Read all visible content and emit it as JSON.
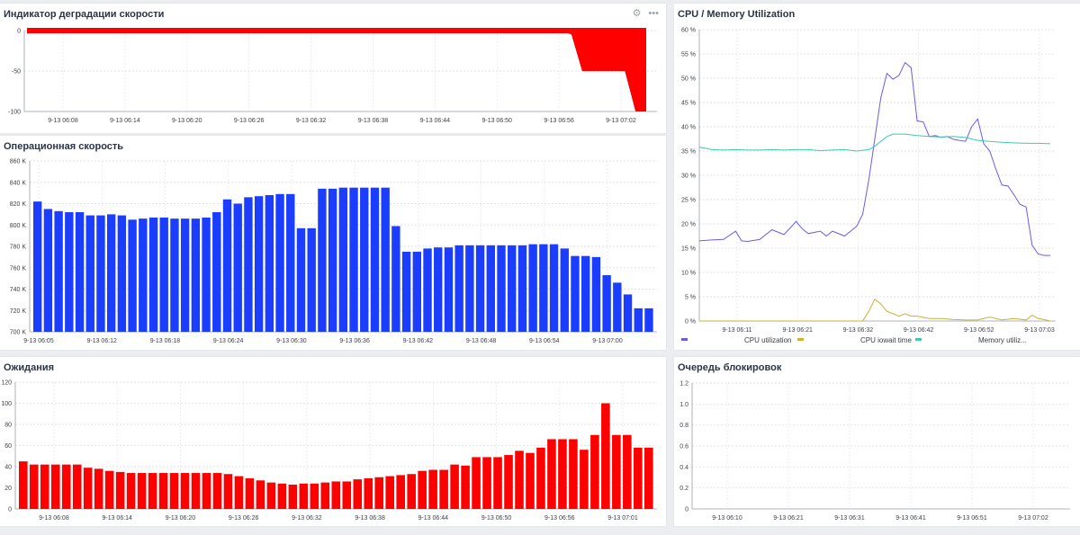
{
  "colors": {
    "red": "#ff0000",
    "blue": "#1a3dff",
    "cpu": "#6a5ce8",
    "iowait": "#c9b13a",
    "memory": "#40c9b0"
  },
  "panels": {
    "degradation": {
      "title": "Индикатор деградации скорости",
      "chart_data": {
        "type": "area",
        "title": "Индикатор деградации скорости",
        "ylim": [
          -100,
          0
        ],
        "y_ticks": [
          "0",
          "-50",
          "-100"
        ],
        "x_ticks": [
          "9-13 06:08",
          "9-13 06:14",
          "9-13 06:20",
          "9-13 06:26",
          "9-13 06:32",
          "9-13 06:38",
          "9-13 06:44",
          "9-13 06:50",
          "9-13 06:56",
          "9-13 07:02"
        ],
        "series": [
          {
            "x": [
              "06:05",
              "06:55",
              "06:56",
              "06:57",
              "07:01",
              "07:02",
              "07:03"
            ],
            "values": [
              0,
              0,
              -5,
              -50,
              -50,
              -100,
              -100
            ]
          }
        ]
      }
    },
    "speed": {
      "title": "Операционная скорость",
      "chart_data": {
        "type": "bar",
        "title": "Операционная скорость",
        "ylim": [
          700,
          860
        ],
        "y_ticks": [
          "860 K",
          "840 K",
          "820 K",
          "800 K",
          "780 K",
          "760 K",
          "740 K",
          "720 K",
          "700 K"
        ],
        "x_ticks": [
          "9-13 06:05",
          "9-13 06:12",
          "9-13 06:18",
          "9-13 06:24",
          "9-13 06:30",
          "9-13 06:36",
          "9-13 06:42",
          "9-13 06:48",
          "9-13 06:54",
          "9-13 07:00"
        ],
        "values": [
          822,
          815,
          813,
          812,
          812,
          809,
          809,
          810,
          809,
          805,
          806,
          807,
          807,
          806,
          806,
          806,
          807,
          812,
          824,
          820,
          826,
          827,
          828,
          829,
          829,
          797,
          797,
          834,
          834,
          835,
          835,
          835,
          835,
          835,
          799,
          775,
          775,
          778,
          779,
          779,
          781,
          781,
          781,
          781,
          781,
          781,
          781,
          782,
          782,
          782,
          778,
          771,
          771,
          770,
          753,
          746,
          735,
          722,
          722
        ]
      }
    },
    "waits": {
      "title": "Ожидания",
      "chart_data": {
        "type": "bar",
        "title": "Ожидания",
        "ylim": [
          0,
          120
        ],
        "y_ticks": [
          "120",
          "100",
          "80",
          "60",
          "40",
          "20",
          "0"
        ],
        "x_ticks": [
          "9-13 06:08",
          "9-13 06:14",
          "9-13 06:20",
          "9-13 06:26",
          "9-13 06:32",
          "9-13 06:38",
          "9-13 06:44",
          "9-13 06:50",
          "9-13 06:56",
          "9-13 07:01"
        ],
        "values": [
          45,
          42,
          42,
          42,
          42,
          42,
          39,
          38,
          36,
          35,
          34,
          34,
          34,
          34,
          34,
          34,
          34,
          34,
          34,
          33,
          31,
          29,
          27,
          25,
          24,
          23,
          24,
          24,
          25,
          26,
          26,
          28,
          29,
          30,
          31,
          32,
          33,
          36,
          37,
          37,
          42,
          41,
          49,
          49,
          49,
          51,
          55,
          53,
          58,
          66,
          66,
          66,
          56,
          70,
          100,
          70,
          70,
          58,
          58
        ]
      }
    },
    "cpu": {
      "title": "CPU / Memory Utilization",
      "chart_data": {
        "type": "line",
        "title": "CPU / Memory Utilization",
        "ylim": [
          0,
          60
        ],
        "y_ticks": [
          "60 %",
          "55 %",
          "50 %",
          "45 %",
          "40 %",
          "35 %",
          "30 %",
          "25 %",
          "20 %",
          "15 %",
          "10 %",
          "5 %",
          "0 %"
        ],
        "x_ticks": [
          "9-13 06:11",
          "9-13 06:21",
          "9-13 06:32",
          "9-13 06:42",
          "9-13 06:52",
          "9-13 07:03"
        ],
        "x_range_minutes": [
          0,
          58
        ],
        "series": [
          {
            "name": "CPU utilization",
            "color_key": "cpu",
            "x": [
              0,
              2,
              4,
              6,
              7,
              8,
              10,
              12,
              14,
              16,
              17,
              18,
              20,
              21,
              22,
              24,
              25,
              26,
              27,
              28,
              30,
              31,
              32,
              33,
              34,
              35,
              36,
              37,
              38,
              39,
              40,
              41,
              42,
              44,
              45,
              46,
              47,
              48,
              49,
              50,
              51,
              52,
              53,
              54,
              55,
              56,
              57,
              58
            ],
            "values": [
              16.5,
              16.7,
              16.8,
              18.5,
              16.5,
              16.4,
              16.8,
              18.8,
              17.8,
              20.5,
              19,
              18,
              18.5,
              17.5,
              18.5,
              17.5,
              18.5,
              19.5,
              22,
              29,
              46,
              51,
              49.8,
              50.6,
              53.2,
              52.2,
              41.2,
              41,
              38,
              38.2,
              37.8,
              38,
              37.4,
              37,
              40,
              41.6,
              36.5,
              35,
              31.3,
              28,
              27.8,
              26,
              24,
              23.5,
              15.6,
              13.8,
              13.5,
              13.5
            ]
          },
          {
            "name": "CPU iowait time",
            "color_key": "iowait",
            "x": [
              0,
              27,
              28,
              29,
              30,
              31,
              32,
              33,
              34,
              35,
              36,
              38,
              40,
              42,
              44,
              46,
              48,
              50,
              52,
              54,
              55,
              56,
              57,
              58
            ],
            "values": [
              0,
              0,
              2,
              4.5,
              3.5,
              2,
              1.5,
              1,
              1.5,
              1,
              1,
              0.5,
              0.5,
              0.3,
              0.2,
              0.2,
              0.8,
              0.2,
              0.5,
              0.2,
              1.2,
              0.5,
              0.3,
              0
            ]
          },
          {
            "name": "Memory utilization",
            "color_key": "memory",
            "x": [
              0,
              1,
              2,
              4,
              6,
              8,
              10,
              12,
              14,
              16,
              18,
              20,
              22,
              24,
              26,
              28,
              29,
              30,
              31,
              32,
              34,
              36,
              38,
              40,
              42,
              44,
              46,
              48,
              50,
              52,
              54,
              56,
              58
            ],
            "values": [
              35.8,
              35.6,
              35.3,
              35.2,
              35.3,
              35.2,
              35.2,
              35.3,
              35.2,
              35.3,
              35.3,
              35.1,
              35.2,
              35.3,
              35,
              35.3,
              36,
              37,
              38,
              38.5,
              38.5,
              38.2,
              38,
              37.9,
              38,
              37.8,
              37.2,
              37,
              36.8,
              36.7,
              36.6,
              36.6,
              36.5
            ]
          }
        ],
        "legend": [
          "CPU utilization",
          "CPU iowait time",
          "Memory utiliz..."
        ]
      }
    },
    "locks": {
      "title": "Очередь блокировок",
      "chart_data": {
        "type": "line",
        "title": "Очередь блокировок",
        "ylim": [
          0,
          1.2
        ],
        "y_ticks": [
          "1.2",
          "1.0",
          "0.8",
          "0.6",
          "0.4",
          "0.2",
          "0"
        ],
        "x_ticks": [
          "9-13 06:10",
          "9-13 06:21",
          "9-13 06:31",
          "9-13 06:41",
          "9-13 06:51",
          "9-13 07:02"
        ],
        "series": []
      }
    }
  }
}
